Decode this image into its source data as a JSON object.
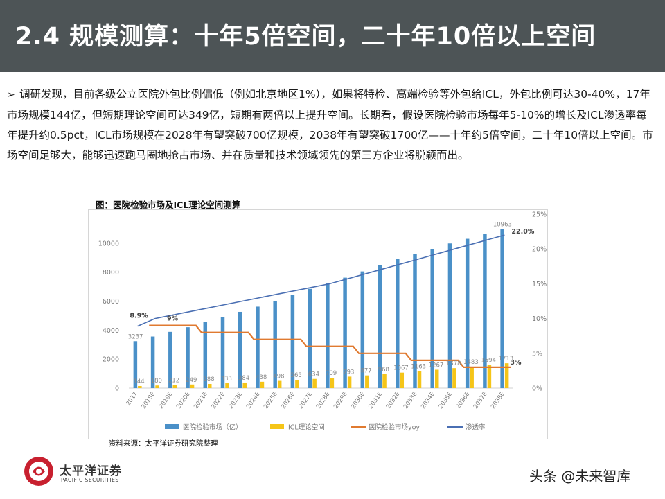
{
  "slide": {
    "title": "2.4 规模测算：十年5倍空间，二十年10倍以上空间",
    "bullet_symbol": "➢",
    "paragraph": "调研发现，目前各级公立医院外包比例偏低（例如北京地区1%），如果将特检、高端检验等外包给ICL，外包比例可达30-40%，17年市场规模144亿，但短期理论空间可达349亿，短期有两倍以上提升空间。长期看，假设医院检验市场每年5-10%的增长及ICL渗透率每年提升约0.5pct，ICL市场规模在2028年有望突破700亿规模，2038年有望突破1700亿——十年约5倍空间，二十年10倍以上空间。市场空间足够大，能够迅速跑马圈地抢占市场、并在质量和技术领域领先的第三方企业将脱颖而出。",
    "figure_title": "图：医院检验市场及ICL理论空间测算",
    "source": "资料来源：太平洋证券研究院整理",
    "logo_cn": "太平洋证券",
    "logo_en": "PACIFIC SECURITIES",
    "watermark": "头条 @未来智库",
    "colors": {
      "header_bg": "#4d5456",
      "bar_market": "#4a90c8",
      "bar_icl": "#f5c518",
      "line_yoy": "#e07a30",
      "line_penetration": "#4a6fb3"
    }
  },
  "chart_data": {
    "type": "bar",
    "title": "",
    "categories": [
      "2017",
      "2018E",
      "2019E",
      "2020E",
      "2021E",
      "2022E",
      "2023E",
      "2024E",
      "2025E",
      "2026E",
      "2027E",
      "2028E",
      "2029E",
      "2030E",
      "2031E",
      "2032E",
      "2033E",
      "2034E",
      "2035E",
      "2036E",
      "2037E",
      "2038E"
    ],
    "series": [
      {
        "name": "医院检验市场（亿）",
        "type": "bar",
        "axis": "left",
        "values": [
          3237,
          3560,
          3880,
          4200,
          4550,
          4900,
          5260,
          5620,
          6000,
          6440,
          6850,
          7220,
          7620,
          8050,
          8480,
          8900,
          9260,
          9600,
          9980,
          10300,
          10640,
          10963
        ]
      },
      {
        "name": "ICL理论空间",
        "type": "bar",
        "axis": "left",
        "values": [
          144,
          180,
          212,
          249,
          288,
          333,
          384,
          438,
          498,
          565,
          634,
          709,
          793,
          877,
          968,
          1067,
          1163,
          1267,
          1378,
          1483,
          1594,
          1713
        ]
      },
      {
        "name": "医院检验市场yoy",
        "type": "line",
        "axis": "right",
        "values": [
          null,
          9,
          9,
          9,
          8,
          8,
          8,
          7,
          7,
          7,
          6,
          6,
          6,
          5,
          5,
          5,
          4,
          4,
          4,
          3,
          3,
          3
        ]
      },
      {
        "name": "渗透率",
        "type": "line",
        "axis": "right",
        "values": [
          8.9,
          10.0,
          10.5,
          11.0,
          11.5,
          12.0,
          12.5,
          13.0,
          13.5,
          14.0,
          14.5,
          15.0,
          15.7,
          16.4,
          17.1,
          17.8,
          18.5,
          19.2,
          19.9,
          20.6,
          21.3,
          22.0
        ]
      }
    ],
    "bar_labels_market": [
      {
        "index": 0,
        "text": "3237"
      },
      {
        "index": 21,
        "text": "10963"
      }
    ],
    "bar_labels_icl": [
      "144",
      "180",
      "212",
      "249",
      "288",
      "333",
      "384",
      "438",
      "498",
      "565",
      "634",
      "709",
      "793",
      "877",
      "968",
      "1067",
      "1163",
      "1267",
      "1378",
      "1483",
      "1594",
      "1713"
    ],
    "line_annotations": [
      {
        "series": "渗透率",
        "index": 0,
        "text": "8.9%"
      },
      {
        "series": "渗透率",
        "index": 21,
        "text": "22.0%"
      },
      {
        "series": "医院检验市场yoy",
        "index": 2,
        "text": "9%"
      },
      {
        "series": "医院检验市场yoy",
        "index": 21,
        "text": "3%"
      }
    ],
    "y_left": {
      "min": 0,
      "max": 12000,
      "ticks": [
        "0",
        "2000",
        "4000",
        "6000",
        "8000",
        "10000"
      ]
    },
    "y_right": {
      "min": 0,
      "max": 25,
      "ticks": [
        "0%",
        "5%",
        "10%",
        "15%",
        "20%",
        "25%"
      ]
    },
    "legend_position": "bottom",
    "legend": [
      "医院检验市场（亿）",
      "ICL理论空间",
      "医院检验市场yoy",
      "渗透率"
    ],
    "grid": false
  }
}
